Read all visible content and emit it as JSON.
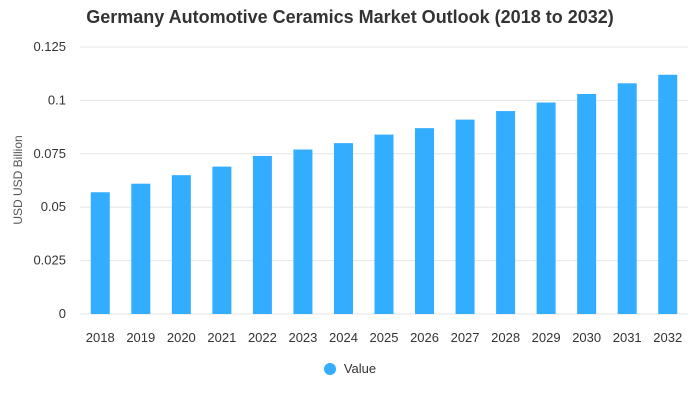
{
  "chart_data": {
    "type": "bar",
    "title": "Germany Automotive Ceramics Market Outlook (2018 to 2032)",
    "xlabel": "",
    "ylabel": "USD USD Billion",
    "categories": [
      "2018",
      "2019",
      "2020",
      "2021",
      "2022",
      "2023",
      "2024",
      "2025",
      "2026",
      "2027",
      "2028",
      "2029",
      "2030",
      "2031",
      "2032"
    ],
    "series": [
      {
        "name": "Value",
        "values": [
          0.057,
          0.061,
          0.065,
          0.069,
          0.074,
          0.077,
          0.08,
          0.084,
          0.087,
          0.091,
          0.095,
          0.099,
          0.103,
          0.108,
          0.112
        ]
      }
    ],
    "ylim": [
      0,
      0.125
    ],
    "yticks": [
      "0",
      "0.025",
      "0.05",
      "0.075",
      "0.1",
      "0.125"
    ],
    "grid": true,
    "legend_position": "bottom",
    "colors": {
      "bar": "#33adff",
      "grid": "#e6e6e6"
    }
  }
}
